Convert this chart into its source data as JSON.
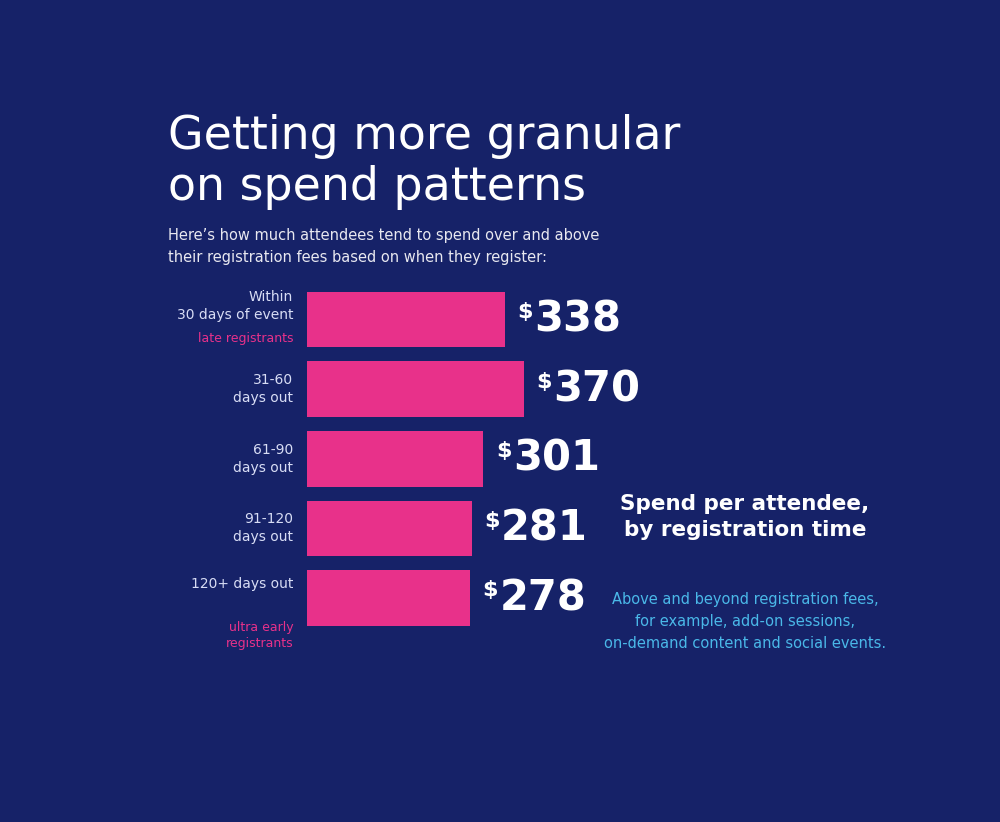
{
  "bg_color": "#162268",
  "bar_color": "#e8318a",
  "title_line1": "Getting more granular",
  "title_line2": "on spend patterns",
  "subtitle": "Here’s how much attendees tend to spend over and above\ntheir registration fees based on when they register:",
  "title_color": "#ffffff",
  "subtitle_color": "#e8e8f0",
  "categories": [
    [
      "Within",
      "30 days of event",
      "late registrants"
    ],
    [
      "31-60",
      "days out",
      null
    ],
    [
      "61-90",
      "days out",
      null
    ],
    [
      "91-120",
      "days out",
      null
    ],
    [
      "120+ days out",
      null,
      "ultra early\nregistrants"
    ]
  ],
  "sub_label_color": "#e8318a",
  "values": [
    338,
    370,
    301,
    281,
    278
  ],
  "max_value": 450,
  "value_color": "#ffffff",
  "dollar_color": "#ffffff",
  "right_title": "Spend per attendee,\nby registration time",
  "right_title_color": "#ffffff",
  "right_subtitle": "Above and beyond registration fees,\nfor example, add-on sessions,\non-demand content and social events.",
  "right_subtitle_color": "#4ab8e8",
  "label_color": "#d8ddf5"
}
